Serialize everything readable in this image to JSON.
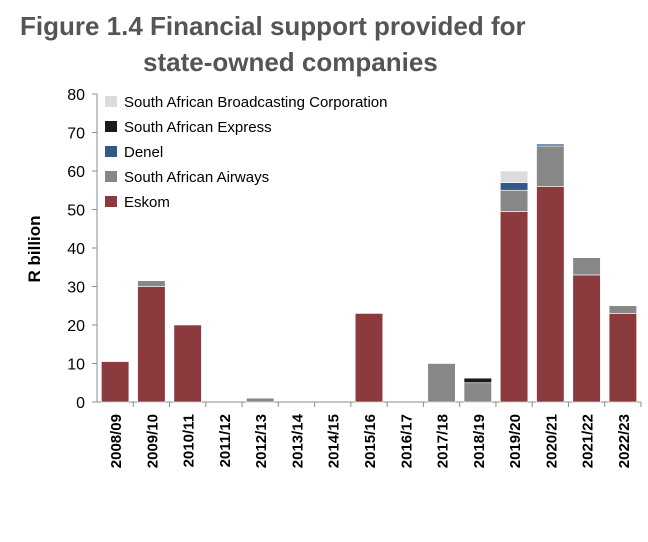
{
  "title": {
    "line1": "Figure 1.4 Financial support provided for",
    "line2": "state-owned companies"
  },
  "chart_data": {
    "type": "bar",
    "stacked": true,
    "title": "Figure 1.4 Financial support provided for state-owned companies",
    "xlabel": "",
    "ylabel": "R billion",
    "ylim": [
      0,
      80
    ],
    "yticks": [
      0,
      10,
      20,
      30,
      40,
      50,
      60,
      70,
      80
    ],
    "grid": false,
    "legend_position": "top-left",
    "categories": [
      "2008/09",
      "2009/10",
      "2010/11",
      "2011/12",
      "2012/13",
      "2013/14",
      "2014/15",
      "2015/16",
      "2016/17",
      "2017/18",
      "2018/19",
      "2019/20",
      "2020/21",
      "2021/22",
      "2022/23"
    ],
    "series": [
      {
        "name": "Eskom",
        "color": "#8b3a3e",
        "values": [
          10.5,
          30,
          20,
          0,
          0,
          0,
          0,
          23,
          0,
          0,
          0,
          49.5,
          56,
          33,
          23
        ]
      },
      {
        "name": "South African Airways",
        "color": "#878787",
        "values": [
          0,
          1.5,
          0,
          0,
          1,
          0,
          0,
          0,
          0,
          10,
          5,
          5.5,
          10.5,
          4.5,
          2
        ]
      },
      {
        "name": "Denel",
        "color": "#2e5a8c",
        "values": [
          0,
          0,
          0,
          0,
          0,
          0,
          0,
          0,
          0,
          0,
          0,
          2,
          0.5,
          0,
          0
        ]
      },
      {
        "name": "South African Express",
        "color": "#1a1a1a",
        "values": [
          0,
          0,
          0,
          0,
          0,
          0,
          0,
          0,
          0,
          0,
          1.2,
          0,
          0,
          0,
          0
        ]
      },
      {
        "name": "South African Broadcasting Corporation",
        "color": "#dcdcdc",
        "values": [
          0,
          0,
          0,
          0,
          0,
          0,
          0,
          0,
          0,
          0,
          0,
          3,
          0,
          0,
          0
        ]
      }
    ],
    "legend_order": [
      "South African Broadcasting Corporation",
      "South African Express",
      "Denel",
      "South African Airways",
      "Eskom"
    ]
  }
}
